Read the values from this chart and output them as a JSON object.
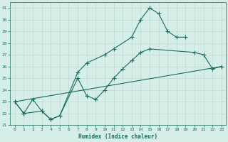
{
  "xlabel": "Humidex (Indice chaleur)",
  "xlim": [
    -0.5,
    23.5
  ],
  "ylim": [
    21,
    31.5
  ],
  "yticks": [
    21,
    22,
    23,
    24,
    25,
    26,
    27,
    28,
    29,
    30,
    31
  ],
  "xticks": [
    0,
    1,
    2,
    3,
    4,
    5,
    6,
    7,
    8,
    9,
    10,
    11,
    12,
    13,
    14,
    15,
    16,
    17,
    18,
    19,
    20,
    21,
    22,
    23
  ],
  "bg_color": "#d6eee8",
  "line_color": "#1a6b5a",
  "grid_color": "#b8d8d0",
  "line1_x": [
    0,
    1,
    3,
    4,
    5,
    7,
    8,
    10,
    11,
    13,
    14,
    15,
    16,
    17,
    18,
    19
  ],
  "line1_y": [
    23,
    22,
    22.2,
    21.5,
    21.8,
    25.5,
    26.3,
    27.0,
    27.5,
    28.5,
    30.0,
    31.0,
    30.5,
    29.0,
    28.5,
    28.5
  ],
  "line2_x": [
    0,
    1,
    2,
    3,
    4,
    5,
    7,
    8,
    9,
    10,
    11,
    12,
    13,
    14,
    15,
    20,
    21,
    22,
    23
  ],
  "line2_y": [
    23,
    22,
    23.2,
    22.2,
    21.5,
    21.8,
    25.0,
    23.5,
    23.2,
    24.0,
    25.0,
    25.8,
    26.5,
    27.2,
    27.5,
    27.2,
    27.0,
    25.8,
    26.0
  ],
  "line3_x": [
    0,
    23
  ],
  "line3_y": [
    23,
    26.0
  ],
  "font_color": "#1a6b5a",
  "marker": "+",
  "markersize": 4,
  "linewidth": 0.8,
  "tick_fontsize": 4.5,
  "xlabel_fontsize": 5.5
}
